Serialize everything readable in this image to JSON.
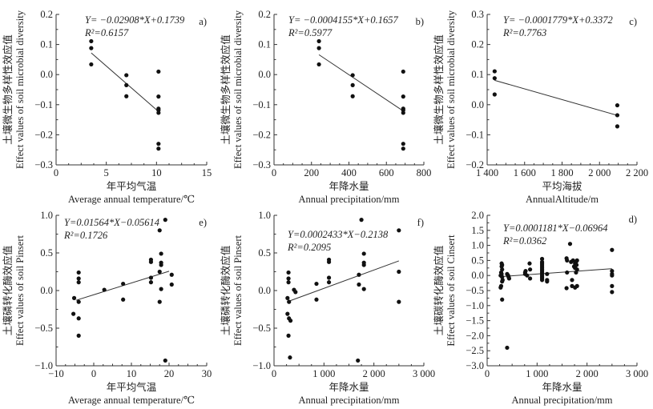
{
  "chart_data": [
    {
      "type": "scatter",
      "panel": "a)",
      "equation": "Y= −0.02908*X+0.1739",
      "r2": "R²=0.6157",
      "slope": -0.02908,
      "intercept": 0.1739,
      "fit_x": [
        3.5,
        10.2
      ],
      "ylabel_cn": "土壤微生物多样性效应值",
      "ylabel_en": "Effect values of soil microbial diversity",
      "xlabel_cn": "年平均气温",
      "xlabel_en": "Average annual temperature/℃",
      "xlim": [
        0,
        15
      ],
      "ylim": [
        -0.3,
        0.2
      ],
      "xticks": [
        0,
        5,
        10,
        15
      ],
      "xtick_labels": [
        "0",
        "5",
        "10",
        "15"
      ],
      "yticks": [
        -0.3,
        -0.2,
        -0.1,
        0.0,
        0.1,
        0.2
      ],
      "ytick_labels": [
        "−0.3",
        "−0.2",
        "−0.1",
        "0.0",
        "0.1",
        "0.2"
      ],
      "points": [
        [
          3.5,
          0.111
        ],
        [
          3.5,
          0.088
        ],
        [
          3.5,
          0.034
        ],
        [
          7,
          -0.002
        ],
        [
          7,
          -0.035
        ],
        [
          7,
          -0.072
        ],
        [
          10.2,
          0.01
        ],
        [
          10.2,
          -0.073
        ],
        [
          10.2,
          -0.113
        ],
        [
          10.2,
          -0.118
        ],
        [
          10.2,
          -0.127
        ],
        [
          10.2,
          -0.23
        ],
        [
          10.2,
          -0.246
        ]
      ]
    },
    {
      "type": "scatter",
      "panel": "b)",
      "equation": "Y= −0.0004155*X+0.1657",
      "r2": "R²=0.5977",
      "slope": -0.0004155,
      "intercept": 0.1657,
      "fit_x": [
        240,
        690
      ],
      "ylabel_cn": "土壤微生物多样性效应值",
      "ylabel_en": "Effect values of soil microbial diversity",
      "xlabel_cn": "年降水量",
      "xlabel_en": "Annual precipitation/mm",
      "xlim": [
        0,
        800
      ],
      "ylim": [
        -0.3,
        0.2
      ],
      "xticks": [
        0,
        200,
        400,
        600,
        800
      ],
      "xtick_labels": [
        "0",
        "200",
        "400",
        "600",
        "800"
      ],
      "yticks": [
        -0.3,
        -0.2,
        -0.1,
        0.0,
        0.1,
        0.2
      ],
      "ytick_labels": [
        "−0.3",
        "−0.2",
        "−0.1",
        "0.0",
        "0.1",
        "0.2"
      ],
      "points": [
        [
          240,
          0.111
        ],
        [
          240,
          0.088
        ],
        [
          240,
          0.034
        ],
        [
          420,
          -0.002
        ],
        [
          420,
          -0.035
        ],
        [
          420,
          -0.072
        ],
        [
          690,
          0.01
        ],
        [
          690,
          -0.073
        ],
        [
          690,
          -0.113
        ],
        [
          690,
          -0.118
        ],
        [
          690,
          -0.127
        ],
        [
          690,
          -0.23
        ],
        [
          690,
          -0.246
        ]
      ]
    },
    {
      "type": "scatter",
      "panel": "c)",
      "equation": "Y= −0.0001779*X+0.3372",
      "r2": "R²=0.7763",
      "slope": -0.0001779,
      "intercept": 0.3372,
      "fit_x": [
        1440,
        2095
      ],
      "ylabel_cn": "土壤微生物多样性效应值",
      "ylabel_en": "Effect values of soil microbial diversity",
      "xlabel_cn": "平均海拔",
      "xlabel_en": "AnnualAltitude/m",
      "xlim": [
        1400,
        2200
      ],
      "ylim": [
        -0.2,
        0.3
      ],
      "xticks": [
        1400,
        1600,
        1800,
        2000,
        2200
      ],
      "xtick_labels": [
        "1 400",
        "1 600",
        "1 800",
        "2 000",
        "2 200"
      ],
      "yticks": [
        -0.2,
        -0.1,
        0.0,
        0.1,
        0.2,
        0.3
      ],
      "ytick_labels": [
        "−0.2",
        "−0.1",
        "0.0",
        "0.1",
        "0.2",
        "0.3"
      ],
      "points": [
        [
          1440,
          0.111
        ],
        [
          1440,
          0.088
        ],
        [
          1440,
          0.034
        ],
        [
          2095,
          -0.002
        ],
        [
          2095,
          -0.035
        ],
        [
          2095,
          -0.072
        ]
      ]
    },
    {
      "type": "scatter",
      "panel": "e)",
      "equation": "Y=0.01564*X−0.05614",
      "r2": "R²=0.1726",
      "slope": 0.01564,
      "intercept": -0.05614,
      "fit_x": [
        -4.7,
        20
      ],
      "ylabel_cn": "土壤磷转化酶效应值",
      "ylabel_en": "Effect values of soil Pinsert",
      "xlabel_cn": "年平均气温",
      "xlabel_en": "Average annual temperature/℃",
      "xlim": [
        -10,
        30
      ],
      "ylim": [
        -1.0,
        1.0
      ],
      "xticks": [
        -10,
        0,
        10,
        20,
        30
      ],
      "xtick_labels": [
        "−10",
        "0",
        "10",
        "20",
        "30"
      ],
      "yticks": [
        -1.0,
        -0.5,
        0.0,
        0.5,
        1.0
      ],
      "ytick_labels": [
        "−1.0",
        "−0.5",
        "0.0",
        "0.5",
        "1.0"
      ],
      "points": [
        [
          -5.2,
          -0.1
        ],
        [
          -5.4,
          -0.31
        ],
        [
          -4,
          0.24
        ],
        [
          -4,
          0.16
        ],
        [
          -4,
          0.11
        ],
        [
          -4,
          -0.15
        ],
        [
          -4,
          -0.37
        ],
        [
          -4,
          -0.6
        ],
        [
          2.8,
          0.01
        ],
        [
          7.8,
          0.09
        ],
        [
          7.8,
          -0.12
        ],
        [
          15.2,
          0.41
        ],
        [
          15.2,
          0.38
        ],
        [
          15.2,
          0.17
        ],
        [
          15.2,
          0.11
        ],
        [
          17.5,
          0.8
        ],
        [
          17.5,
          0.25
        ],
        [
          17.5,
          -0.15
        ],
        [
          17.9,
          0.49
        ],
        [
          17.9,
          0.37
        ],
        [
          17.9,
          0.34
        ],
        [
          17.9,
          0.02
        ],
        [
          19,
          0.94
        ],
        [
          19,
          -0.93
        ],
        [
          20.7,
          0.21
        ],
        [
          20.7,
          0.08
        ]
      ]
    },
    {
      "type": "scatter",
      "panel": "f)",
      "equation": "Y=0.0002433*X−0.2138",
      "r2": "R²=0.2095",
      "slope": 0.0002433,
      "intercept": -0.2138,
      "fit_x": [
        300,
        2500
      ],
      "ylabel_cn": "土壤磷转化酶效应值",
      "ylabel_en": "Effect values of soil Pinsert",
      "xlabel_cn": "年降水量",
      "xlabel_en": "Annual precipitation/mm",
      "xlim": [
        0,
        3000
      ],
      "ylim": [
        -1.0,
        1.0
      ],
      "xticks": [
        0,
        1000,
        2000,
        3000
      ],
      "xtick_labels": [
        "0",
        "1 000",
        "2 000",
        "3 000"
      ],
      "yticks": [
        -1.0,
        -0.5,
        0.0,
        0.5,
        1.0
      ],
      "ytick_labels": [
        "−1.0",
        "−0.5",
        "0.0",
        "0.5",
        "1.0"
      ],
      "points": [
        [
          270,
          -0.1
        ],
        [
          270,
          -0.31
        ],
        [
          290,
          0.24
        ],
        [
          290,
          0.16
        ],
        [
          290,
          0.11
        ],
        [
          300,
          -0.15
        ],
        [
          300,
          -0.37
        ],
        [
          290,
          -0.6
        ],
        [
          320,
          -0.89
        ],
        [
          330,
          -0.4
        ],
        [
          400,
          0.01
        ],
        [
          430,
          -0.02
        ],
        [
          850,
          0.09
        ],
        [
          850,
          -0.12
        ],
        [
          1100,
          0.41
        ],
        [
          1100,
          0.38
        ],
        [
          1100,
          0.17
        ],
        [
          1100,
          0.11
        ],
        [
          1680,
          -0.93
        ],
        [
          1700,
          0.21
        ],
        [
          1700,
          0.08
        ],
        [
          1750,
          0.94
        ],
        [
          1800,
          0.49
        ],
        [
          1800,
          0.37
        ],
        [
          1800,
          0.34
        ],
        [
          1800,
          0.02
        ],
        [
          2500,
          0.8
        ],
        [
          2500,
          0.25
        ],
        [
          2500,
          -0.15
        ]
      ]
    },
    {
      "type": "scatter",
      "panel": "d)",
      "equation": "Y=0.0001181*X−0.06964",
      "r2": "R²=0.0362",
      "slope": 0.0001181,
      "intercept": -0.06964,
      "fit_x": [
        300,
        2500
      ],
      "ylabel_cn": "土壤碳转化酶效应值",
      "ylabel_en": "Effect values of soil Cinsert",
      "xlabel_cn": "年降水量",
      "xlabel_en": "Annual precipitation/mm",
      "xlim": [
        0,
        3000
      ],
      "ylim": [
        -3.0,
        2.0
      ],
      "xticks": [
        0,
        1000,
        2000,
        3000
      ],
      "xtick_labels": [
        "0",
        "1 000",
        "2 000",
        "3 000"
      ],
      "yticks": [
        -3.0,
        -2.5,
        -2.0,
        -1.5,
        -1.0,
        -0.5,
        0.0,
        0.5,
        1.0,
        1.5,
        2.0
      ],
      "ytick_labels": [
        "−3.0",
        "−2.5",
        "−2.0",
        "−1.5",
        "−1.0",
        "−0.5",
        "0.0",
        "0.5",
        "1.0",
        "1.5",
        "2.0"
      ],
      "points": [
        [
          290,
          0.4
        ],
        [
          300,
          0.35
        ],
        [
          290,
          0.3
        ],
        [
          300,
          0.2
        ],
        [
          280,
          0.1
        ],
        [
          290,
          0.05
        ],
        [
          270,
          0
        ],
        [
          300,
          -0.05
        ],
        [
          310,
          -0.15
        ],
        [
          300,
          -0.2
        ],
        [
          280,
          -0.35
        ],
        [
          270,
          -0.4
        ],
        [
          300,
          -0.8
        ],
        [
          400,
          0.05
        ],
        [
          420,
          0
        ],
        [
          430,
          -0.05
        ],
        [
          440,
          -0.1
        ],
        [
          400,
          -2.4
        ],
        [
          760,
          0.1
        ],
        [
          770,
          0.15
        ],
        [
          760,
          0.05
        ],
        [
          800,
          0
        ],
        [
          850,
          0.4
        ],
        [
          860,
          0.2
        ],
        [
          860,
          -0.1
        ],
        [
          1100,
          0.55
        ],
        [
          1100,
          0.45
        ],
        [
          1100,
          0.4
        ],
        [
          1100,
          0.35
        ],
        [
          1100,
          0.3
        ],
        [
          1100,
          0.25
        ],
        [
          1100,
          0.2
        ],
        [
          1100,
          0.15
        ],
        [
          1100,
          0.1
        ],
        [
          1100,
          0.05
        ],
        [
          1100,
          0
        ],
        [
          1100,
          -0.05
        ],
        [
          1100,
          -0.1
        ],
        [
          1100,
          -0.15
        ],
        [
          1200,
          0.05
        ],
        [
          1200,
          -0.15
        ],
        [
          1200,
          -0.2
        ],
        [
          1590,
          0.57
        ],
        [
          1600,
          0.5
        ],
        [
          1600,
          0.1
        ],
        [
          1590,
          -0.42
        ],
        [
          1660,
          1.05
        ],
        [
          1680,
          0.45
        ],
        [
          1720,
          0.5
        ],
        [
          1740,
          0.3
        ],
        [
          1760,
          0.4
        ],
        [
          1780,
          0.45
        ],
        [
          1790,
          0.35
        ],
        [
          1800,
          0.5
        ],
        [
          1760,
          0.25
        ],
        [
          1800,
          0.2
        ],
        [
          1780,
          0.1
        ],
        [
          1700,
          -0.15
        ],
        [
          1700,
          -0.35
        ],
        [
          1760,
          -0.4
        ],
        [
          1800,
          -0.35
        ],
        [
          2500,
          0.85
        ],
        [
          2500,
          0.15
        ],
        [
          2500,
          0.05
        ],
        [
          2500,
          0
        ],
        [
          2500,
          -0.35
        ],
        [
          2500,
          -0.55
        ]
      ]
    }
  ]
}
